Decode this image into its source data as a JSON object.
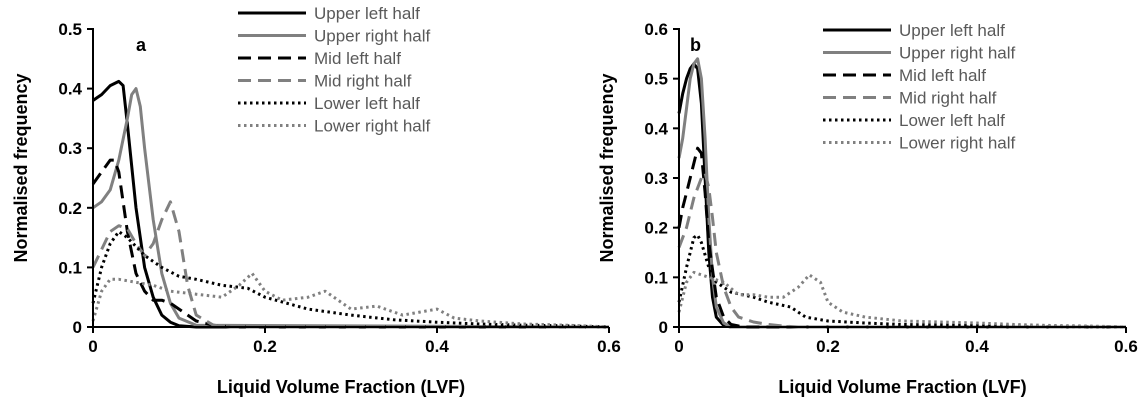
{
  "chart_data": [
    {
      "type": "line",
      "panel_label": "a",
      "xlabel": "Liquid Volume Fraction (LVF)",
      "ylabel": "Normalised frequency",
      "xlim": [
        0,
        0.6
      ],
      "ylim": [
        0,
        0.5
      ],
      "xticks": [
        0,
        0.2,
        0.4,
        0.6
      ],
      "xtick_labels": [
        "0",
        "0.2",
        "0.4",
        "0.6"
      ],
      "yticks": [
        0,
        0.1,
        0.2,
        0.3,
        0.4,
        0.5
      ],
      "ytick_labels": [
        "0",
        "0.1",
        "0.2",
        "0.3",
        "0.4",
        "0.5"
      ],
      "legend_position": "top-right",
      "series": [
        {
          "name": "Upper left half",
          "color": "#000000",
          "style": "solid",
          "x": [
            0,
            0.005,
            0.01,
            0.02,
            0.03,
            0.035,
            0.04,
            0.05,
            0.06,
            0.07,
            0.08,
            0.09,
            0.1,
            0.12,
            0.6
          ],
          "y": [
            0.38,
            0.385,
            0.39,
            0.405,
            0.412,
            0.405,
            0.34,
            0.2,
            0.1,
            0.05,
            0.02,
            0.008,
            0.002,
            0,
            0
          ]
        },
        {
          "name": "Upper right half",
          "color": "#808080",
          "style": "solid",
          "x": [
            0,
            0.01,
            0.02,
            0.03,
            0.04,
            0.045,
            0.05,
            0.055,
            0.06,
            0.07,
            0.08,
            0.09,
            0.1,
            0.12,
            0.6
          ],
          "y": [
            0.2,
            0.21,
            0.23,
            0.28,
            0.35,
            0.39,
            0.4,
            0.37,
            0.3,
            0.18,
            0.09,
            0.04,
            0.015,
            0.003,
            0
          ]
        },
        {
          "name": "Mid left half",
          "color": "#000000",
          "style": "dashed",
          "x": [
            0,
            0.01,
            0.02,
            0.025,
            0.03,
            0.04,
            0.05,
            0.06,
            0.07,
            0.08,
            0.09,
            0.1,
            0.12,
            0.14,
            0.16,
            0.6
          ],
          "y": [
            0.24,
            0.26,
            0.28,
            0.28,
            0.26,
            0.16,
            0.09,
            0.06,
            0.045,
            0.045,
            0.04,
            0.03,
            0.01,
            0.003,
            0,
            0
          ]
        },
        {
          "name": "Mid right half",
          "color": "#808080",
          "style": "dashed",
          "x": [
            0,
            0.01,
            0.02,
            0.03,
            0.04,
            0.05,
            0.06,
            0.07,
            0.08,
            0.09,
            0.1,
            0.11,
            0.12,
            0.14,
            0.16,
            0.6
          ],
          "y": [
            0.1,
            0.13,
            0.16,
            0.17,
            0.165,
            0.14,
            0.12,
            0.14,
            0.18,
            0.21,
            0.16,
            0.07,
            0.02,
            0.003,
            0,
            0
          ]
        },
        {
          "name": "Lower left half",
          "color": "#000000",
          "style": "dotted",
          "x": [
            0,
            0.01,
            0.02,
            0.03,
            0.04,
            0.06,
            0.08,
            0.1,
            0.12,
            0.15,
            0.18,
            0.2,
            0.25,
            0.3,
            0.35,
            0.4,
            0.45,
            0.5,
            0.55,
            0.6
          ],
          "y": [
            0.04,
            0.1,
            0.14,
            0.16,
            0.15,
            0.12,
            0.1,
            0.085,
            0.08,
            0.07,
            0.065,
            0.05,
            0.03,
            0.02,
            0.012,
            0.008,
            0.005,
            0.003,
            0.002,
            0
          ]
        },
        {
          "name": "Lower right half",
          "color": "#808080",
          "style": "dotted",
          "x": [
            0,
            0.01,
            0.02,
            0.03,
            0.05,
            0.07,
            0.09,
            0.12,
            0.15,
            0.17,
            0.185,
            0.2,
            0.22,
            0.25,
            0.27,
            0.3,
            0.33,
            0.36,
            0.38,
            0.4,
            0.42,
            0.45,
            0.5,
            0.55,
            0.6
          ],
          "y": [
            0.01,
            0.06,
            0.08,
            0.08,
            0.075,
            0.07,
            0.06,
            0.055,
            0.05,
            0.07,
            0.09,
            0.06,
            0.045,
            0.05,
            0.06,
            0.03,
            0.035,
            0.02,
            0.025,
            0.03,
            0.015,
            0.01,
            0.005,
            0.003,
            0
          ]
        }
      ]
    },
    {
      "type": "line",
      "panel_label": "b",
      "xlabel": "Liquid Volume Fraction (LVF)",
      "ylabel": "Normalised frequency",
      "xlim": [
        0,
        0.6
      ],
      "ylim": [
        0,
        0.6
      ],
      "xticks": [
        0,
        0.2,
        0.4,
        0.6
      ],
      "xtick_labels": [
        "0",
        "0.2",
        "0.4",
        "0.6"
      ],
      "yticks": [
        0,
        0.1,
        0.2,
        0.3,
        0.4,
        0.5,
        0.6
      ],
      "ytick_labels": [
        "0",
        "0.1",
        "0.2",
        "0.3",
        "0.4",
        "0.5",
        "0.6"
      ],
      "legend_position": "top-right",
      "series": [
        {
          "name": "Upper left half",
          "color": "#000000",
          "style": "solid",
          "x": [
            0,
            0.005,
            0.01,
            0.015,
            0.02,
            0.025,
            0.03,
            0.035,
            0.04,
            0.045,
            0.05,
            0.06,
            0.07,
            0.6
          ],
          "y": [
            0.43,
            0.47,
            0.5,
            0.52,
            0.53,
            0.52,
            0.45,
            0.3,
            0.15,
            0.06,
            0.02,
            0.003,
            0,
            0
          ]
        },
        {
          "name": "Upper right half",
          "color": "#808080",
          "style": "solid",
          "x": [
            0,
            0.005,
            0.01,
            0.015,
            0.02,
            0.025,
            0.03,
            0.035,
            0.04,
            0.045,
            0.05,
            0.06,
            0.07,
            0.6
          ],
          "y": [
            0.34,
            0.38,
            0.44,
            0.5,
            0.53,
            0.54,
            0.5,
            0.38,
            0.22,
            0.1,
            0.04,
            0.008,
            0,
            0
          ]
        },
        {
          "name": "Mid left half",
          "color": "#000000",
          "style": "dashed",
          "x": [
            0,
            0.005,
            0.01,
            0.02,
            0.025,
            0.03,
            0.035,
            0.04,
            0.05,
            0.06,
            0.07,
            0.08,
            0.09,
            0.6
          ],
          "y": [
            0.2,
            0.24,
            0.27,
            0.33,
            0.36,
            0.35,
            0.27,
            0.17,
            0.06,
            0.02,
            0.005,
            0.002,
            0,
            0
          ]
        },
        {
          "name": "Mid right half",
          "color": "#808080",
          "style": "dashed",
          "x": [
            0,
            0.01,
            0.02,
            0.03,
            0.035,
            0.04,
            0.045,
            0.05,
            0.06,
            0.07,
            0.08,
            0.1,
            0.12,
            0.14,
            0.16,
            0.6
          ],
          "y": [
            0.16,
            0.2,
            0.26,
            0.3,
            0.31,
            0.28,
            0.22,
            0.15,
            0.08,
            0.04,
            0.02,
            0.01,
            0.005,
            0.002,
            0,
            0
          ]
        },
        {
          "name": "Lower left half",
          "color": "#000000",
          "style": "dotted",
          "x": [
            0,
            0.01,
            0.02,
            0.025,
            0.03,
            0.04,
            0.05,
            0.07,
            0.1,
            0.12,
            0.15,
            0.17,
            0.2,
            0.25,
            0.3,
            0.35,
            0.4,
            0.5,
            0.6
          ],
          "y": [
            0.05,
            0.12,
            0.18,
            0.185,
            0.17,
            0.12,
            0.09,
            0.07,
            0.06,
            0.05,
            0.04,
            0.02,
            0.012,
            0.008,
            0.005,
            0.004,
            0.003,
            0.001,
            0
          ]
        },
        {
          "name": "Lower right half",
          "color": "#808080",
          "style": "dotted",
          "x": [
            0,
            0.01,
            0.02,
            0.04,
            0.06,
            0.08,
            0.1,
            0.12,
            0.14,
            0.16,
            0.175,
            0.19,
            0.2,
            0.22,
            0.25,
            0.3,
            0.35,
            0.4,
            0.45,
            0.5,
            0.55,
            0.6
          ],
          "y": [
            0.03,
            0.09,
            0.11,
            0.1,
            0.09,
            0.065,
            0.065,
            0.06,
            0.06,
            0.08,
            0.105,
            0.09,
            0.05,
            0.03,
            0.02,
            0.012,
            0.01,
            0.008,
            0.005,
            0.003,
            0.002,
            0
          ]
        }
      ]
    }
  ]
}
